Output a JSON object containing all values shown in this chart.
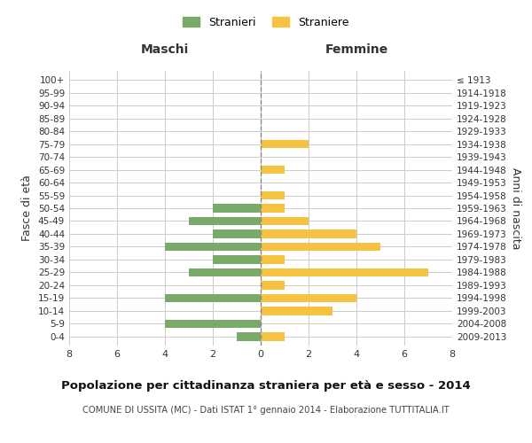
{
  "age_groups": [
    "0-4",
    "5-9",
    "10-14",
    "15-19",
    "20-24",
    "25-29",
    "30-34",
    "35-39",
    "40-44",
    "45-49",
    "50-54",
    "55-59",
    "60-64",
    "65-69",
    "70-74",
    "75-79",
    "80-84",
    "85-89",
    "90-94",
    "95-99",
    "100+"
  ],
  "birth_years": [
    "2009-2013",
    "2004-2008",
    "1999-2003",
    "1994-1998",
    "1989-1993",
    "1984-1988",
    "1979-1983",
    "1974-1978",
    "1969-1973",
    "1964-1968",
    "1959-1963",
    "1954-1958",
    "1949-1953",
    "1944-1948",
    "1939-1943",
    "1934-1938",
    "1929-1933",
    "1924-1928",
    "1919-1923",
    "1914-1918",
    "≤ 1913"
  ],
  "maschi": [
    1,
    4,
    0,
    4,
    0,
    3,
    2,
    4,
    2,
    3,
    2,
    0,
    0,
    0,
    0,
    0,
    0,
    0,
    0,
    0,
    0
  ],
  "femmine": [
    1,
    0,
    3,
    4,
    1,
    7,
    1,
    5,
    4,
    2,
    1,
    1,
    0,
    1,
    0,
    2,
    0,
    0,
    0,
    0,
    0
  ],
  "color_maschi": "#7aaa6a",
  "color_femmine": "#f5c242",
  "title": "Popolazione per cittadinanza straniera per età e sesso - 2014",
  "subtitle": "COMUNE DI USSITA (MC) - Dati ISTAT 1° gennaio 2014 - Elaborazione TUTTITALIA.IT",
  "legend_maschi": "Stranieri",
  "legend_femmine": "Straniere",
  "xlabel_left": "Maschi",
  "xlabel_right": "Femmine",
  "ylabel_left": "Fasce di età",
  "ylabel_right": "Anni di nascita",
  "xlim": 8,
  "background_color": "#ffffff",
  "grid_color": "#cccccc"
}
